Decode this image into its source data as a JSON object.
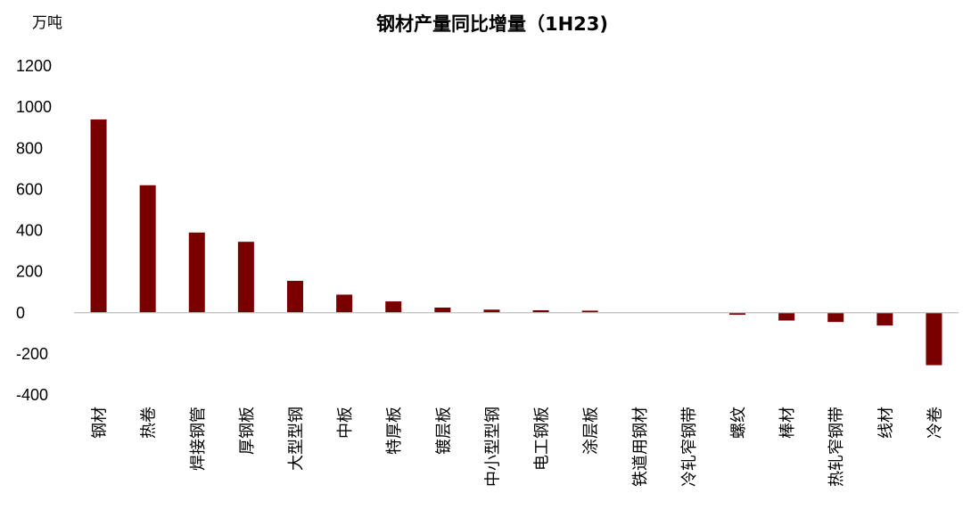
{
  "chart_data": {
    "type": "bar",
    "title": "钢材产量同比增量（1H23)",
    "unit_label": "万吨",
    "xlabel": "",
    "ylabel": "",
    "ylim": [
      -400,
      1200
    ],
    "yticks": [
      1200,
      1000,
      800,
      600,
      400,
      200,
      0,
      -200,
      -400
    ],
    "categories": [
      "钢材",
      "热卷",
      "焊接钢管",
      "厚钢板",
      "大型型钢",
      "中板",
      "特厚板",
      "镀层板",
      "中小型型钢",
      "电工钢板",
      "涂层板",
      "铁道用钢材",
      "冷轧窄钢带",
      "螺纹",
      "棒材",
      "热轧窄钢带",
      "线材",
      "冷卷"
    ],
    "values": [
      940,
      620,
      390,
      345,
      155,
      88,
      55,
      25,
      15,
      12,
      10,
      0,
      0,
      -10,
      -38,
      -45,
      -62,
      -255
    ],
    "bar_color": "#7a0000",
    "grid": false,
    "legend": "none"
  }
}
